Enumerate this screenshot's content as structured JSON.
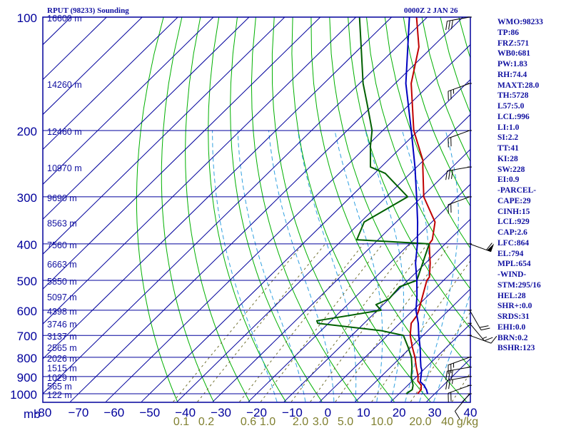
{
  "header": {
    "station": "RPUT (98233) Sounding",
    "time": "0000Z  2 JAN 26"
  },
  "side_panel": [
    "WMO:98233",
    "TP:86",
    "FRZ:571",
    "WB0:681",
    "PW:1.83",
    "RH:74.4",
    "MAXT:28.0",
    "TH:5728",
    "L57:5.0",
    "LCL:996",
    "LI:1.0",
    "SI:2.2",
    "TT:41",
    "KI:28",
    "SW:228",
    "EI:0.9",
    "-PARCEL-",
    "CAPE:29",
    "CINH:15",
    "LCL:929",
    "CAP:2.6",
    "LFC:864",
    "EL:794",
    "MPL:654",
    "-WIND-",
    "STM:295/16",
    "HEL:28",
    "SHR+:0.0",
    "SRDS:31",
    "EHI:0.0",
    "BRN:0.2",
    "BSHR:123"
  ],
  "colors": {
    "frame": "#00009c",
    "isotherm": "#00009c",
    "dry_adiabat": "#00b000",
    "moist_adiabat": "#30a0e0",
    "mixing_ratio": "#707030",
    "temperature": "#c00000",
    "dewpoint": "#006000",
    "parcel": "#0000c0",
    "label": "#1010a0",
    "mixing_label": "#808030"
  },
  "chart_data": {
    "type": "skew-t",
    "xlabel": "",
    "ylabel": "mb",
    "x_ticks": [
      -80,
      -70,
      -60,
      -50,
      -40,
      -30,
      -20,
      -10,
      0,
      10,
      20,
      30,
      40
    ],
    "x_tick_labels": [
      "-80",
      "−70",
      "−60",
      "−50",
      "−40",
      "−30",
      "−20",
      "−10",
      "0",
      "10",
      "20",
      "30",
      "40"
    ],
    "y_ticks": [
      100,
      200,
      300,
      400,
      500,
      600,
      700,
      800,
      900,
      1000
    ],
    "xlim": [
      -80,
      40
    ],
    "ylim": [
      1050,
      100
    ],
    "height_labels": [
      {
        "p": 100,
        "label": "16600 m"
      },
      {
        "p": 150,
        "label": "14260 m"
      },
      {
        "p": 200,
        "label": "12460 m"
      },
      {
        "p": 250,
        "label": "10970 m"
      },
      {
        "p": 300,
        "label": "9690 m"
      },
      {
        "p": 350,
        "label": "8563 m"
      },
      {
        "p": 400,
        "label": "7560 m"
      },
      {
        "p": 450,
        "label": "6663 m"
      },
      {
        "p": 500,
        "label": "5850 m"
      },
      {
        "p": 550,
        "label": "5097 m"
      },
      {
        "p": 600,
        "label": "4398 m"
      },
      {
        "p": 650,
        "label": "3746 m"
      },
      {
        "p": 700,
        "label": "3137 m"
      },
      {
        "p": 750,
        "label": "2565 m"
      },
      {
        "p": 800,
        "label": "2026 m"
      },
      {
        "p": 850,
        "label": "1515 m"
      },
      {
        "p": 900,
        "label": "1029 m"
      },
      {
        "p": 950,
        "label": "565 m"
      },
      {
        "p": 1000,
        "label": "122 m"
      }
    ],
    "mixing_ratio_labels": [
      "0.1",
      "0.2",
      "0.6",
      "1.0",
      "2.0",
      "3.0",
      "5.0",
      "10.0",
      "20.0",
      "40",
      "g/kg"
    ],
    "series": [
      {
        "name": "",
        "key": "temperature",
        "p": [
          1000,
          975,
          950,
          925,
          900,
          850,
          800,
          750,
          700,
          650,
          620,
          600,
          560,
          500,
          490,
          450,
          400,
          390,
          350,
          300,
          250,
          240,
          200,
          150,
          120,
          100
        ],
        "t": [
          25.2,
          25.0,
          23.8,
          21.6,
          20.4,
          17.2,
          14.0,
          10.2,
          6.4,
          3.2,
          2.6,
          1.6,
          -0.8,
          -4.7,
          -4.9,
          -8.7,
          -14.5,
          -14.8,
          -19.1,
          -29.5,
          -38.3,
          -40.2,
          -51.3,
          -65.5,
          -73.8,
          -83.0
        ]
      },
      {
        "name": "",
        "key": "dewpoint",
        "p": [
          1000,
          975,
          950,
          925,
          900,
          850,
          800,
          750,
          700,
          680,
          650,
          640,
          600,
          580,
          560,
          520,
          500,
          400,
          390,
          350,
          300,
          260,
          250,
          220,
          200,
          170,
          150,
          120,
          100
        ],
        "t": [
          22.0,
          22.5,
          21.5,
          20.0,
          18.5,
          16.0,
          13.0,
          9.0,
          4.5,
          -3.0,
          -23.0,
          -24.0,
          -9.0,
          -12.0,
          -10.0,
          -10.5,
          -7.5,
          -14.5,
          -36.0,
          -39.0,
          -34.0,
          -47.0,
          -53.0,
          -59.0,
          -63.0,
          -72.0,
          -79.0,
          -90.0,
          -99.0
        ]
      },
      {
        "name": "",
        "key": "parcel",
        "p": [
          1000,
          975,
          950,
          929,
          900,
          864,
          850,
          800,
          794,
          750,
          700,
          650,
          600,
          550,
          500,
          450,
          400,
          350,
          300,
          250,
          200,
          150,
          100
        ],
        "t": [
          28.0,
          26.5,
          24.6,
          22.5,
          21.2,
          19.5,
          18.5,
          15.5,
          15.2,
          12.4,
          8.8,
          5.2,
          0.8,
          -3.0,
          -7.5,
          -12.8,
          -17.8,
          -24.0,
          -31.5,
          -40.5,
          -52.0,
          -67.0,
          -85.0
        ]
      }
    ],
    "wind_barbs": [
      {
        "p": 1000,
        "dir": 40,
        "spd": 10
      },
      {
        "p": 950,
        "dir": 70,
        "spd": 20
      },
      {
        "p": 900,
        "dir": 80,
        "spd": 25
      },
      {
        "p": 850,
        "dir": 80,
        "spd": 30
      },
      {
        "p": 800,
        "dir": 70,
        "spd": 25
      },
      {
        "p": 700,
        "dir": 290,
        "spd": 10
      },
      {
        "p": 650,
        "dir": 320,
        "spd": 15
      },
      {
        "p": 600,
        "dir": 330,
        "spd": 20
      },
      {
        "p": 400,
        "dir": 290,
        "spd": 60
      },
      {
        "p": 300,
        "dir": 70,
        "spd": 20
      },
      {
        "p": 250,
        "dir": 80,
        "spd": 30
      },
      {
        "p": 200,
        "dir": 70,
        "spd": 20
      },
      {
        "p": 150,
        "dir": 70,
        "spd": 25
      },
      {
        "p": 100,
        "dir": 80,
        "spd": 30
      }
    ]
  }
}
